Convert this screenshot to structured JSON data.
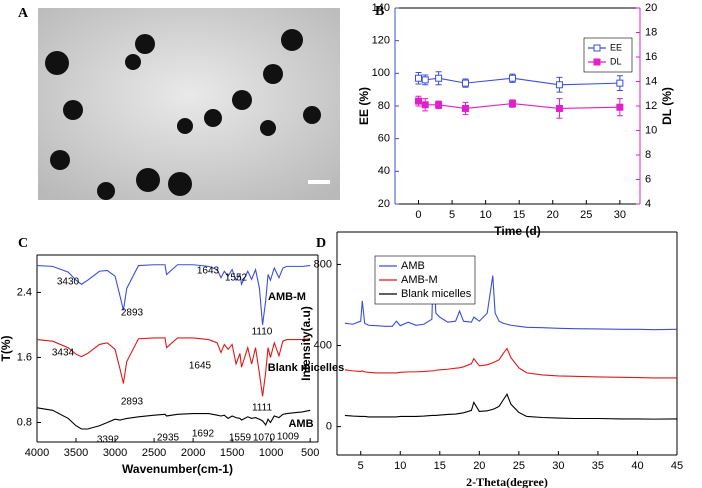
{
  "chart_data": [
    {
      "type": "image",
      "panel": "A"
    },
    {
      "type": "line",
      "panel": "B",
      "xlabel": "Time (d)",
      "ylabel": "EE (%)",
      "y2label": "DL (%)",
      "x": [
        0,
        1,
        3,
        7,
        14,
        21,
        30
      ],
      "xlim": [
        -3.5,
        33
      ],
      "xticks": [
        0,
        5,
        10,
        15,
        20,
        25,
        30
      ],
      "ylim": [
        20,
        140
      ],
      "yticks": [
        20,
        40,
        60,
        80,
        100,
        120,
        140
      ],
      "y2lim": [
        4,
        20
      ],
      "y2ticks": [
        4,
        6,
        8,
        10,
        12,
        14,
        16,
        18,
        20
      ],
      "markers": true,
      "legend": "upper-right",
      "series": [
        {
          "name": "EE",
          "color": "#3b4fd8",
          "marker": "hollow-square",
          "values": [
            97,
            96,
            97,
            94,
            97,
            93,
            94
          ],
          "errors": [
            3.5,
            3,
            4,
            2.5,
            2.5,
            4.5,
            4.5
          ]
        },
        {
          "name": "DL",
          "color": "#e020c8",
          "marker": "filled-square",
          "axis": "y2",
          "values": [
            12.4,
            12.1,
            12.1,
            11.8,
            12.2,
            11.8,
            11.9
          ],
          "errors": [
            0.4,
            0.5,
            0.3,
            0.5,
            0.3,
            0.8,
            0.7
          ]
        }
      ]
    },
    {
      "type": "line",
      "panel": "C",
      "xlabel": "Wavenumber(cm-1)",
      "ylabel": "T(%)",
      "x": [
        4000,
        3800,
        3600,
        3500,
        3430,
        3350,
        3200,
        3100,
        3000,
        2935,
        2893,
        2850,
        2700,
        2500,
        2360,
        2340,
        2200,
        2000,
        1800,
        1692,
        1643,
        1600,
        1552,
        1500,
        1450,
        1400,
        1380,
        1300,
        1250,
        1200,
        1150,
        1110,
        1070,
        1040,
        1009,
        960,
        900,
        850,
        800,
        700,
        600,
        500
      ],
      "xlim": [
        4000,
        400
      ],
      "xticks": [
        4000,
        3500,
        3000,
        2500,
        2000,
        1500,
        1000,
        500
      ],
      "ylim": [
        0.56,
        2.86
      ],
      "yticks": [
        0.8,
        1.6,
        2.4
      ],
      "annotations": [
        "3430",
        "2893",
        "1643",
        "1552",
        "1110",
        "AMB-M",
        "3434",
        "2893",
        "1645",
        "Blank micelles",
        "1111",
        "AMB",
        "3392",
        "2935",
        "1692",
        "1559",
        "1070",
        "1009"
      ],
      "series": [
        {
          "name": "AMB-M",
          "color": "#3b4fd8",
          "values": [
            2.73,
            2.72,
            2.65,
            2.55,
            2.5,
            2.55,
            2.66,
            2.67,
            2.6,
            2.35,
            2.18,
            2.45,
            2.73,
            2.74,
            2.74,
            2.62,
            2.74,
            2.74,
            2.72,
            2.68,
            2.58,
            2.66,
            2.6,
            2.68,
            2.55,
            2.62,
            2.5,
            2.66,
            2.56,
            2.68,
            2.45,
            2.0,
            2.3,
            2.62,
            2.55,
            2.7,
            2.58,
            2.7,
            2.72,
            2.72,
            2.72,
            2.73
          ]
        },
        {
          "name": "Blank micelles",
          "color": "#e01818",
          "values": [
            1.82,
            1.8,
            1.72,
            1.64,
            1.61,
            1.65,
            1.76,
            1.78,
            1.7,
            1.45,
            1.28,
            1.55,
            1.83,
            1.84,
            1.84,
            1.72,
            1.84,
            1.84,
            1.82,
            1.78,
            1.66,
            1.76,
            1.7,
            1.76,
            1.52,
            1.65,
            1.48,
            1.72,
            1.52,
            1.72,
            1.4,
            1.12,
            1.42,
            1.72,
            1.6,
            1.78,
            1.62,
            1.8,
            1.82,
            1.82,
            1.82,
            1.83
          ]
        },
        {
          "name": "AMB",
          "color": "#000000",
          "values": [
            0.98,
            0.95,
            0.85,
            0.76,
            0.72,
            0.72,
            0.76,
            0.8,
            0.84,
            0.83,
            0.84,
            0.85,
            0.87,
            0.89,
            0.9,
            0.88,
            0.9,
            0.91,
            0.91,
            0.89,
            0.88,
            0.89,
            0.85,
            0.88,
            0.86,
            0.85,
            0.83,
            0.87,
            0.85,
            0.86,
            0.84,
            0.82,
            0.77,
            0.84,
            0.8,
            0.88,
            0.86,
            0.9,
            0.91,
            0.92,
            0.93,
            0.95
          ]
        }
      ]
    },
    {
      "type": "line",
      "panel": "D",
      "xlabel": "2-Theta(degree)",
      "ylabel": "Intensity(a.u)",
      "x": [
        3,
        4,
        5,
        5.2,
        5.5,
        6,
        7,
        8,
        9,
        9.5,
        10,
        11,
        12,
        13,
        14,
        14.2,
        14.5,
        15,
        16,
        17,
        17.5,
        18,
        19,
        19.3,
        20,
        21,
        21.7,
        22,
        22.5,
        23,
        23.5,
        24,
        25,
        26,
        28,
        30,
        32,
        35,
        38,
        40,
        42,
        45
      ],
      "xlim": [
        2,
        45
      ],
      "xticks": [
        5,
        10,
        15,
        20,
        25,
        30,
        35,
        40,
        45
      ],
      "ylim": [
        -140,
        960
      ],
      "yticks": [
        0,
        400,
        800
      ],
      "legend": "upper-left",
      "series": [
        {
          "name": "AMB",
          "color": "#3b4fd8",
          "values": [
            510,
            505,
            520,
            620,
            510,
            500,
            498,
            495,
            495,
            520,
            498,
            515,
            500,
            505,
            530,
            815,
            560,
            540,
            515,
            520,
            570,
            520,
            515,
            540,
            520,
            560,
            745,
            560,
            520,
            510,
            505,
            500,
            495,
            490,
            488,
            485,
            483,
            482,
            480,
            480,
            478,
            480
          ]
        },
        {
          "name": "AMB-M",
          "color": "#e01818",
          "values": [
            280,
            275,
            272,
            275,
            270,
            268,
            265,
            265,
            265,
            265,
            268,
            270,
            270,
            272,
            275,
            275,
            278,
            280,
            283,
            288,
            290,
            295,
            310,
            335,
            300,
            305,
            315,
            320,
            330,
            360,
            385,
            340,
            290,
            265,
            255,
            250,
            248,
            245,
            243,
            242,
            240,
            240
          ]
        },
        {
          "name": "Blank micelles",
          "color": "#000000",
          "values": [
            55,
            52,
            50,
            50,
            50,
            48,
            48,
            48,
            48,
            48,
            50,
            50,
            50,
            52,
            55,
            55,
            55,
            57,
            60,
            62,
            65,
            68,
            80,
            120,
            75,
            78,
            85,
            90,
            100,
            130,
            160,
            110,
            70,
            50,
            45,
            42,
            40,
            40,
            38,
            38,
            37,
            38
          ]
        }
      ]
    }
  ]
}
